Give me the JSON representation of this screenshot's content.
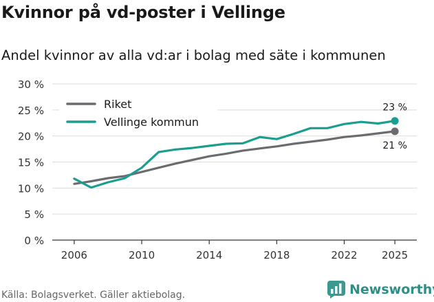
{
  "header": {
    "title": "Kvinnor på vd-poster i Vellinge",
    "subtitle": "Andel kvinnor av alla vd:ar i bolag med säte i kommunen"
  },
  "footer": {
    "source": "Källa: Bolagsverket. Gäller aktiebolag.",
    "brand": "Newsworthy"
  },
  "colors": {
    "riket": "#6b6b70",
    "vellinge": "#1a9e90",
    "grid": "#dddddd",
    "axis": "#333333"
  },
  "chart_data": {
    "type": "line",
    "title": "Kvinnor på vd-poster i Vellinge",
    "subtitle": "Andel kvinnor av alla vd:ar i bolag med säte i kommunen",
    "xlabel": "",
    "ylabel": "",
    "x": [
      2006,
      2007,
      2008,
      2009,
      2010,
      2011,
      2012,
      2013,
      2014,
      2015,
      2016,
      2017,
      2018,
      2019,
      2020,
      2021,
      2022,
      2023,
      2024,
      2025
    ],
    "xticks": [
      2006,
      2010,
      2014,
      2018,
      2022,
      2025
    ],
    "xtick_labels": [
      "2006",
      "2010",
      "2014",
      "2018",
      "2022",
      "2025"
    ],
    "xlim": [
      2004.7,
      2026.3
    ],
    "ylim": [
      0,
      30
    ],
    "yticks": [
      0,
      5,
      10,
      15,
      20,
      25,
      30
    ],
    "ytick_labels": [
      "0 %",
      "5 %",
      "10 %",
      "15 %",
      "20 %",
      "25 %",
      "30 %"
    ],
    "grid": "horizontal",
    "legend_position": "top-left",
    "series": [
      {
        "name": "Riket",
        "color": "#6b6b70",
        "values": [
          10.8,
          11.3,
          11.9,
          12.3,
          13.1,
          13.9,
          14.7,
          15.4,
          16.1,
          16.6,
          17.2,
          17.6,
          18.0,
          18.5,
          18.9,
          19.3,
          19.8,
          20.1,
          20.5,
          20.9
        ],
        "end_label": "21 %"
      },
      {
        "name": "Vellinge kommun",
        "color": "#1a9e90",
        "values": [
          11.8,
          10.1,
          11.1,
          11.9,
          13.9,
          16.9,
          17.4,
          17.7,
          18.1,
          18.5,
          18.6,
          19.8,
          19.4,
          20.4,
          21.5,
          21.5,
          22.3,
          22.7,
          22.4,
          22.9
        ],
        "end_label": "23 %"
      }
    ]
  }
}
